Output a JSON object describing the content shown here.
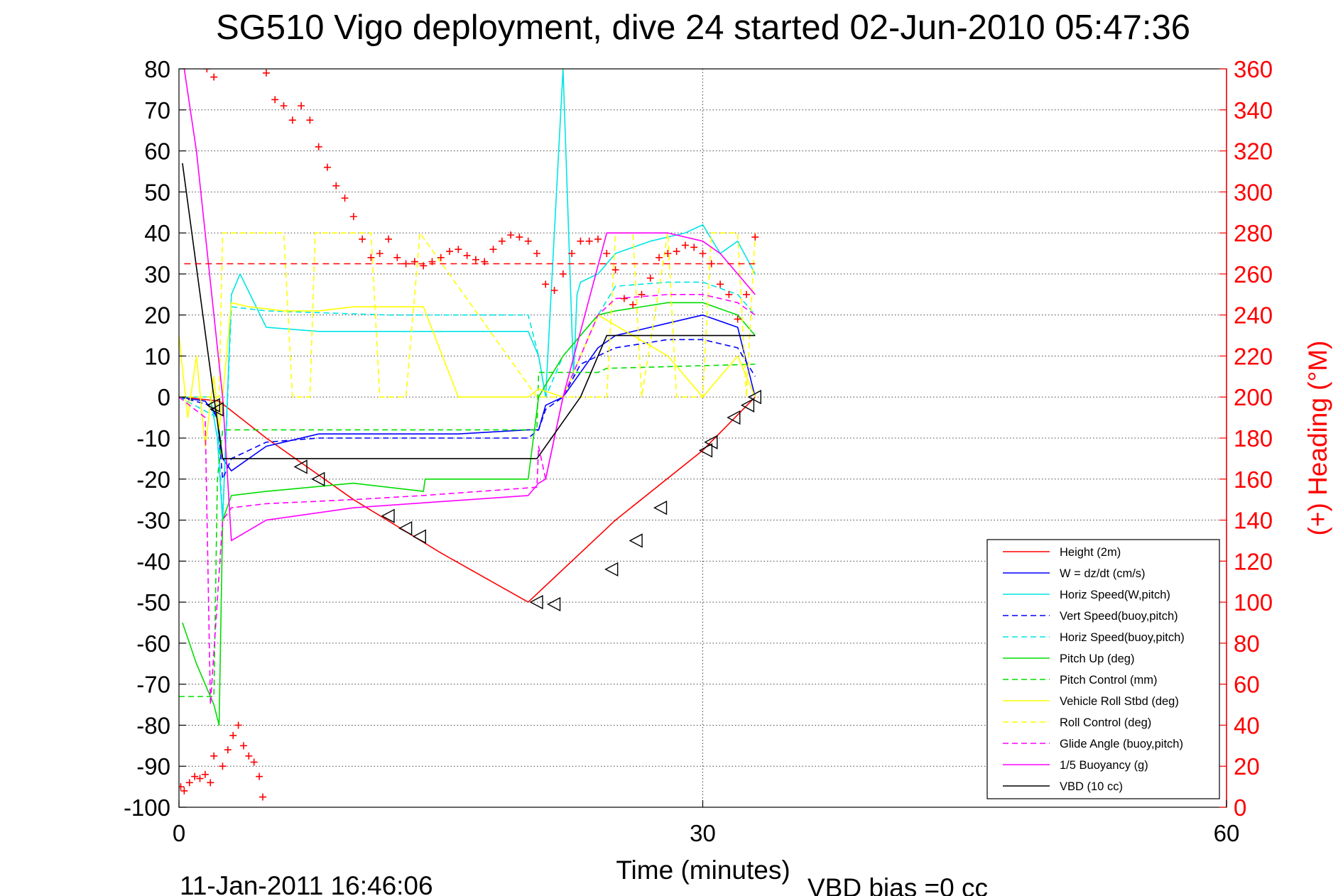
{
  "chart_data": {
    "type": "line",
    "title": "SG510 Vigo deployment, dive 24 started 02-Jun-2010 05:47:36",
    "xlabel": "Time (minutes)",
    "ylabel": "",
    "ylabel_right": "(+) Heading (°M)",
    "xlim": [
      0,
      60
    ],
    "ylim": [
      -100,
      80
    ],
    "ylim_right": [
      0,
      360
    ],
    "x_ticks": [
      0,
      30,
      60
    ],
    "x_tick_labels": [
      "0",
      "30",
      "60"
    ],
    "y_ticks": [
      80,
      70,
      60,
      50,
      40,
      30,
      20,
      10,
      0,
      -10,
      -20,
      -30,
      -40,
      -50,
      -60,
      -70,
      -80,
      -90,
      -100
    ],
    "y_tick_labels": [
      "80",
      "70",
      "60",
      "50",
      "40",
      "30",
      "20",
      "10",
      "0",
      "-10",
      "-20",
      "-30",
      "-40",
      "-50",
      "-60",
      "-70",
      "-80",
      "-90",
      "-100"
    ],
    "y2_ticks": [
      360,
      340,
      320,
      300,
      280,
      260,
      240,
      220,
      200,
      180,
      160,
      140,
      120,
      100,
      80,
      60,
      40,
      20,
      0
    ],
    "y2_tick_labels": [
      "360",
      "340",
      "320",
      "300",
      "280",
      "260",
      "240",
      "220",
      "200",
      "180",
      "160",
      "140",
      "120",
      "100",
      "80",
      "60",
      "40",
      "20",
      "0"
    ],
    "grid": true,
    "legend_position": "bottom-right",
    "footer_timestamp": "11-Jan-2011 16:46:06",
    "footer_note": "VBD bias =0 cc",
    "series": [
      {
        "name": "Height (2m)",
        "color": "#ff0000",
        "style": "solid",
        "x": [
          0.2,
          2.3,
          5,
          10,
          15,
          20,
          25,
          30,
          33
        ],
        "y": [
          0,
          -1,
          -10,
          -25,
          -38,
          -50,
          -30,
          -13,
          0
        ]
      },
      {
        "name": "W = dz/dt (cm/s)",
        "color": "#0000ff",
        "style": "solid",
        "x": [
          0,
          1.5,
          2.2,
          2.5,
          3,
          5,
          8,
          12,
          16,
          20,
          20.6,
          21,
          22,
          24,
          25,
          28,
          30,
          32,
          33
        ],
        "y": [
          0,
          -1,
          -5,
          -15,
          -18,
          -12,
          -9,
          -9,
          -9,
          -8,
          -8,
          -2,
          0,
          12,
          15,
          18,
          20,
          17,
          0
        ]
      },
      {
        "name": "Horiz Speed(W,pitch)",
        "color": "#00e5e5",
        "style": "solid",
        "x": [
          0,
          1.8,
          2.2,
          2.5,
          3,
          3.5,
          5,
          8,
          12,
          16,
          20,
          20.6,
          21,
          22,
          22.6,
          22.8,
          23,
          24,
          25,
          27,
          29,
          30,
          31,
          32,
          33
        ],
        "y": [
          0,
          0,
          -10,
          -30,
          25,
          30,
          17,
          16,
          16,
          16,
          16,
          10,
          0,
          80,
          5,
          25,
          28,
          30,
          35,
          38,
          40,
          42,
          35,
          38,
          30
        ]
      },
      {
        "name": "Vert Speed(buoy,pitch)",
        "color": "#0000ff",
        "style": "dashed",
        "x": [
          0,
          1.8,
          2.2,
          2.5,
          3,
          5,
          8,
          12,
          16,
          20,
          20.6,
          21,
          22,
          23,
          24,
          25,
          28,
          30,
          32,
          33
        ],
        "y": [
          0,
          -2,
          -5,
          -20,
          -15,
          -11,
          -10,
          -10,
          -10,
          -10,
          -8,
          -3,
          0,
          8,
          10,
          12,
          14,
          14,
          12,
          5
        ]
      },
      {
        "name": "Horiz Speed(buoy,pitch)",
        "color": "#00e5e5",
        "style": "dashed",
        "x": [
          0,
          2.2,
          2.5,
          3,
          5,
          12,
          20,
          20.6,
          21,
          22,
          24,
          25,
          28,
          30,
          32,
          33
        ],
        "y": [
          0,
          -5,
          -30,
          22,
          21,
          20,
          20,
          10,
          0,
          10,
          20,
          27,
          28,
          28,
          25,
          20
        ]
      },
      {
        "name": "Pitch Up (deg)",
        "color": "#00dd00",
        "style": "solid",
        "x": [
          0.2,
          1,
          2,
          2.3,
          2.5,
          3,
          5,
          10,
          14,
          14.1,
          20,
          20.6,
          21,
          22,
          24,
          25,
          28,
          30,
          32,
          33
        ],
        "y": [
          -55,
          -65,
          -75,
          -80,
          -30,
          -24,
          -23,
          -21,
          -23,
          -20,
          -20,
          0,
          3,
          10,
          20,
          21,
          23,
          23,
          20,
          15
        ]
      },
      {
        "name": "Pitch Control (mm)",
        "color": "#00dd00",
        "style": "dashed",
        "x": [
          0,
          2,
          2.2,
          2.5,
          5,
          10,
          20.5,
          20.6,
          24,
          24.5,
          33
        ],
        "y": [
          -73,
          -73,
          -20,
          -8,
          -8,
          -8,
          -8,
          6,
          6,
          7,
          8
        ]
      },
      {
        "name": "Vehicle Roll Stbd (deg)",
        "color": "#ffff00",
        "style": "solid",
        "x": [
          0,
          0.5,
          1,
          1.5,
          2,
          2.3,
          2.5,
          3,
          4,
          6,
          8,
          10,
          12,
          14,
          16,
          20,
          20.6,
          22,
          24,
          26,
          28,
          30,
          32,
          33
        ],
        "y": [
          15,
          -5,
          10,
          -12,
          5,
          -8,
          0,
          23,
          22,
          21,
          21,
          22,
          22,
          22,
          0,
          0,
          2,
          0,
          20,
          15,
          10,
          0,
          10,
          0
        ]
      },
      {
        "name": "Roll Control (deg)",
        "color": "#ffff00",
        "style": "dashed",
        "x": [
          0,
          2.3,
          2.5,
          6,
          6.5,
          7.5,
          7.8,
          11,
          11.5,
          13,
          13.8,
          20.5,
          24.5,
          25,
          26,
          26.5,
          28,
          28.5,
          30,
          30.5,
          32,
          32.5,
          33
        ],
        "y": [
          0,
          0,
          40,
          40,
          0,
          0,
          40,
          40,
          0,
          0,
          40,
          0,
          0,
          40,
          40,
          0,
          40,
          0,
          0,
          40,
          40,
          0,
          40
        ]
      },
      {
        "name": "Glide Angle (buoy,pitch)",
        "color": "#ff00ff",
        "style": "dashed",
        "x": [
          0,
          1.5,
          1.8,
          2.5,
          3,
          5,
          10,
          14,
          20.5,
          20.6,
          21,
          22,
          23,
          24,
          25,
          28,
          30,
          32,
          33
        ],
        "y": [
          0,
          -5,
          -75,
          -30,
          -27,
          -26,
          -25,
          -24,
          -22,
          -12,
          -20,
          0,
          10,
          20,
          24,
          25,
          25,
          23,
          20
        ]
      },
      {
        "name": "1/5 Buoyancy (g)",
        "color": "#ff00ff",
        "style": "solid",
        "x": [
          0.3,
          1,
          2,
          2.5,
          3,
          5,
          10,
          20,
          20.6,
          21,
          22,
          24.5,
          28,
          30,
          31,
          32,
          33
        ],
        "y": [
          80,
          60,
          20,
          0,
          -35,
          -30,
          -27,
          -24,
          -21,
          -20,
          0,
          40,
          40,
          38,
          35,
          30,
          25
        ]
      },
      {
        "name": "VBD (10 cc)",
        "color": "#000000",
        "style": "solid",
        "x": [
          0.2,
          2,
          2.5,
          20.5,
          23,
          24.5,
          33
        ],
        "y": [
          57,
          0,
          -15,
          -15,
          0,
          15,
          15
        ]
      }
    ],
    "heading_series": {
      "name": "(+) Heading",
      "color": "#ff0000",
      "marker": "+",
      "axis": "right",
      "mean_heading_line": 265,
      "segments": [
        {
          "x": [
            0.1,
            0.3,
            0.6,
            0.9,
            1.2,
            1.5,
            1.8
          ],
          "y": [
            10,
            8,
            12,
            15,
            14,
            16,
            12
          ]
        },
        {
          "x": [
            2,
            2.5,
            2.8,
            3.1,
            3.4,
            3.7,
            4,
            4.3,
            4.6,
            4.8
          ],
          "y": [
            25,
            20,
            28,
            35,
            40,
            30,
            25,
            22,
            15,
            5
          ]
        },
        {
          "x": [
            1.6,
            2
          ],
          "y": [
            360,
            356
          ]
        },
        {
          "x": [
            5,
            5.5,
            6,
            6.5,
            7,
            7.5,
            8,
            8.5,
            9,
            9.5,
            10,
            10.5,
            11,
            11.5,
            12,
            12.5,
            13,
            13.5,
            14,
            14.5,
            15,
            15.5,
            16,
            16.5,
            17,
            17.5,
            18,
            18.5,
            19,
            19.5,
            20,
            20.5,
            21,
            21.5,
            22,
            22.5,
            23,
            23.5,
            24,
            24.5,
            25,
            25.5,
            26,
            26.5,
            27,
            27.5,
            28,
            28.5,
            29,
            29.5,
            30,
            30.5,
            31,
            31.5,
            32,
            32.5,
            33
          ],
          "y": [
            358,
            345,
            342,
            335,
            342,
            335,
            322,
            312,
            303,
            297,
            288,
            277,
            268,
            270,
            277,
            268,
            265,
            266,
            264,
            266,
            268,
            271,
            272,
            269,
            267,
            266,
            272,
            276,
            279,
            278,
            276,
            270,
            255,
            252,
            260,
            270,
            276,
            276,
            277,
            270,
            262,
            248,
            245,
            250,
            258,
            268,
            270,
            271,
            274,
            273,
            270,
            265,
            255,
            250,
            238,
            250,
            278
          ]
        }
      ]
    },
    "depth_markers": {
      "marker": "triangle",
      "color": "#000000",
      "axis": "left",
      "x": [
        2,
        2.2,
        7,
        8,
        12,
        13,
        13.8,
        20.5,
        21.5,
        24.8,
        26.2,
        27.6,
        30.2,
        30.5,
        31.8,
        32.6,
        33
      ],
      "y": [
        -2,
        -3,
        -17,
        -20,
        -29,
        -32,
        -34,
        -50,
        -50.5,
        -42,
        -35,
        -27,
        -13,
        -11,
        -5,
        -2,
        0
      ]
    }
  }
}
